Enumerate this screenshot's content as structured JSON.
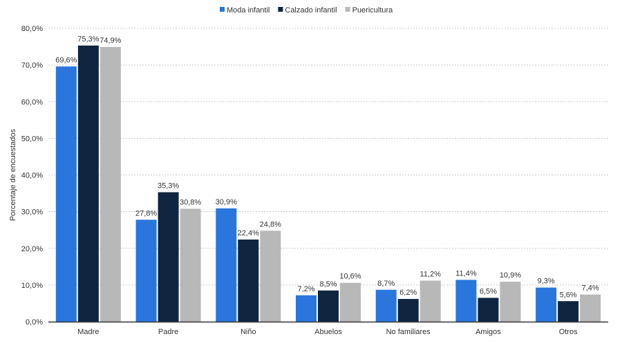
{
  "chart_data": {
    "type": "bar",
    "title": "",
    "xlabel": "",
    "ylabel": "Porcentaje de encuestados",
    "ylim": [
      0,
      80
    ],
    "yticks": [
      "0,0%",
      "10,0%",
      "20,0%",
      "30,0%",
      "40,0%",
      "50,0%",
      "60,0%",
      "70,0%",
      "80,0%"
    ],
    "grid": true,
    "legend_position": "top-center",
    "categories": [
      "Madre",
      "Padre",
      "Niño",
      "Abuelos",
      "No familiares",
      "Amigos",
      "Otros"
    ],
    "series": [
      {
        "name": "Moda infantil",
        "color": "#2a76dd",
        "values": [
          69.6,
          27.8,
          30.9,
          7.2,
          8.7,
          11.4,
          9.3
        ],
        "labels": [
          "69,6%",
          "27,8%",
          "30,9%",
          "7,2%",
          "8,7%",
          "11,4%",
          "9,3%"
        ]
      },
      {
        "name": "Calzado infantil",
        "color": "#10253f",
        "values": [
          75.3,
          35.3,
          22.4,
          8.5,
          6.2,
          6.5,
          5.6
        ],
        "labels": [
          "75,3%",
          "35,3%",
          "22,4%",
          "8,5%",
          "6,2%",
          "6,5%",
          "5,6%"
        ]
      },
      {
        "name": "Puericultura",
        "color": "#b8b8b8",
        "values": [
          74.9,
          30.8,
          24.8,
          10.6,
          11.2,
          10.9,
          7.4
        ],
        "labels": [
          "74,9%",
          "30,8%",
          "24,8%",
          "10,6%",
          "11,2%",
          "10,9%",
          "7,4%"
        ]
      }
    ]
  }
}
